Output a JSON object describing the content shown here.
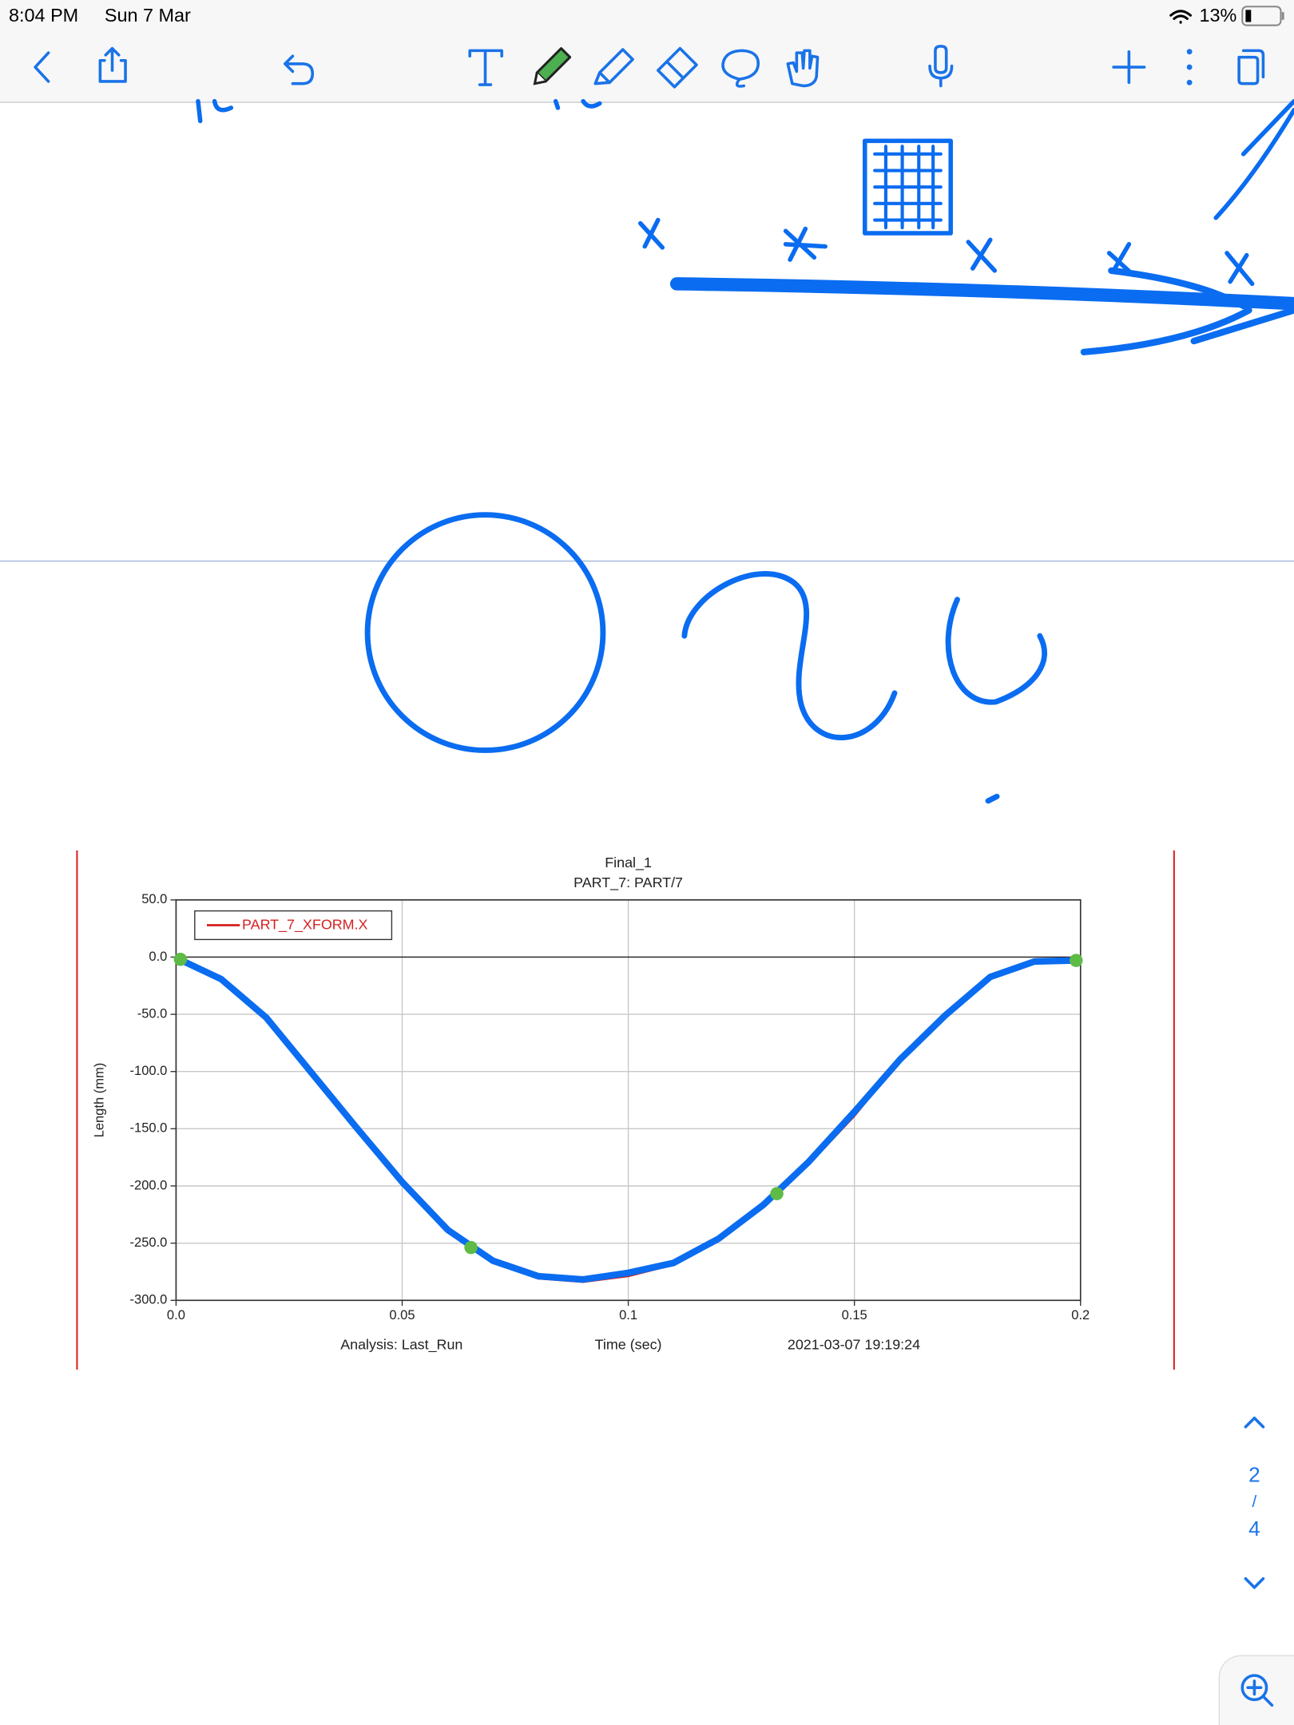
{
  "status_bar": {
    "time": "8:04 PM",
    "date": "Sun 7 Mar",
    "battery": "13%"
  },
  "page_indicator": {
    "current": "2",
    "separator": "/",
    "total": "4"
  },
  "chart_data": {
    "type": "line",
    "title": "Final_1",
    "subtitle": "PART_7: PART/7",
    "x_label": "Time (sec)",
    "y_label": "Length (mm)",
    "footer_left": "Analysis: Last_Run",
    "footer_right": "2021-03-07 19:19:24",
    "x": [
      0,
      0.01,
      0.02,
      0.03,
      0.04,
      0.05,
      0.06,
      0.07,
      0.08,
      0.09,
      0.1,
      0.11,
      0.12,
      0.13,
      0.14,
      0.15,
      0.16,
      0.17,
      0.18,
      0.19,
      0.2
    ],
    "series": [
      {
        "name": "PART_7_XFORM.X",
        "color": "#d42020",
        "values": [
          0,
          -19,
          -53,
          -101,
          -149,
          -197,
          -238,
          -265,
          -281,
          -284,
          -279,
          -269,
          -248,
          -218,
          -181,
          -139,
          -91,
          -53,
          -19,
          -3,
          0
        ]
      }
    ],
    "xlim": [
      0,
      0.2
    ],
    "ylim": [
      -300,
      50
    ],
    "xticks": [
      {
        "value": 0,
        "label": "0.0"
      },
      0.05,
      0.1,
      0.15,
      0.2
    ],
    "yticks": [
      {
        "value": 50,
        "label": "50.0"
      },
      {
        "value": 0,
        "label": "0.0"
      },
      {
        "value": -50,
        "label": "-50.0"
      },
      {
        "value": -100,
        "label": "-100.0"
      },
      {
        "value": -150,
        "label": "-150.0"
      },
      {
        "value": -200,
        "label": "-200.0"
      },
      {
        "value": -250,
        "label": "-250.0"
      },
      {
        "value": -300,
        "label": "-300.0"
      }
    ],
    "grid": true,
    "legend": "upper left"
  }
}
